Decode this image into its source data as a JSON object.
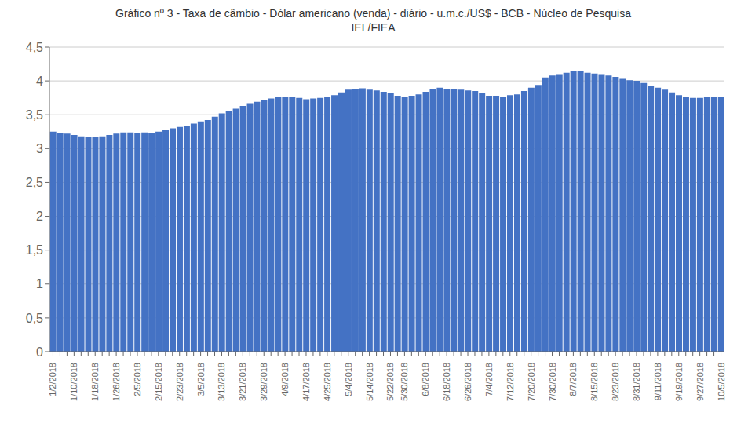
{
  "chart_data": {
    "type": "bar",
    "title": "Gráfico nº 3 - Taxa de câmbio - Dólar americano (venda) - diário - u.m.c./US$ - BCB - Núcleo de Pesquisa\nIEL/FIEA",
    "color": "#4472C4",
    "grid": true,
    "ylim": [
      0,
      4.5
    ],
    "yticks": [
      0,
      {
        "value": 0.5,
        "label": "0,5"
      },
      1,
      {
        "value": 1.5,
        "label": "1,5"
      },
      2,
      {
        "value": 2.5,
        "label": "2,5"
      },
      3,
      {
        "value": 3.5,
        "label": "3,5"
      },
      4,
      {
        "value": 4.5,
        "label": "4,5"
      }
    ],
    "categories": [
      "1/2/2018",
      null,
      null,
      "1/10/2018",
      null,
      null,
      "1/18/2018",
      null,
      null,
      "1/26/2018",
      null,
      null,
      "2/5/2018",
      null,
      null,
      "2/15/2018",
      null,
      null,
      "2/23/2018",
      null,
      null,
      "3/5/2018",
      null,
      null,
      "3/13/2018",
      null,
      null,
      "3/21/2018",
      null,
      null,
      "3/29/2018",
      null,
      null,
      "4/9/2018",
      null,
      null,
      "4/17/2018",
      null,
      null,
      "4/25/2018",
      null,
      null,
      "5/4/2018",
      null,
      null,
      "5/14/2018",
      null,
      null,
      "5/22/2018",
      null,
      "5/30/2018",
      null,
      null,
      "6/8/2018",
      null,
      null,
      "6/18/2018",
      null,
      null,
      "6/26/2018",
      null,
      null,
      "7/4/2018",
      null,
      null,
      "7/12/2018",
      null,
      null,
      "7/20/2018",
      null,
      null,
      "7/30/2018",
      null,
      null,
      "8/7/2018",
      null,
      null,
      "8/15/2018",
      null,
      null,
      "8/23/2018",
      null,
      null,
      "8/31/2018",
      null,
      null,
      "9/11/2018",
      null,
      null,
      "9/19/2018",
      null,
      null,
      "9/27/2018",
      null,
      null,
      "10/5/2018"
    ],
    "values": [
      3.25,
      3.23,
      3.22,
      3.2,
      3.18,
      3.17,
      3.17,
      3.18,
      3.2,
      3.22,
      3.24,
      3.24,
      3.23,
      3.24,
      3.23,
      3.25,
      3.28,
      3.3,
      3.32,
      3.34,
      3.37,
      3.4,
      3.42,
      3.47,
      3.52,
      3.56,
      3.59,
      3.63,
      3.67,
      3.69,
      3.71,
      3.74,
      3.76,
      3.77,
      3.77,
      3.75,
      3.73,
      3.74,
      3.75,
      3.77,
      3.79,
      3.83,
      3.87,
      3.88,
      3.89,
      3.87,
      3.86,
      3.84,
      3.82,
      3.78,
      3.77,
      3.78,
      3.8,
      3.84,
      3.88,
      3.9,
      3.88,
      3.88,
      3.87,
      3.86,
      3.85,
      3.82,
      3.78,
      3.78,
      3.77,
      3.79,
      3.8,
      3.85,
      3.9,
      3.94,
      4.05,
      4.08,
      4.1,
      4.12,
      4.14,
      4.14,
      4.12,
      4.11,
      4.1,
      4.08,
      4.06,
      4.03,
      4.01,
      4.0,
      3.97,
      3.93,
      3.9,
      3.87,
      3.83,
      3.79,
      3.76,
      3.75,
      3.75,
      3.76,
      3.77,
      3.76
    ]
  }
}
